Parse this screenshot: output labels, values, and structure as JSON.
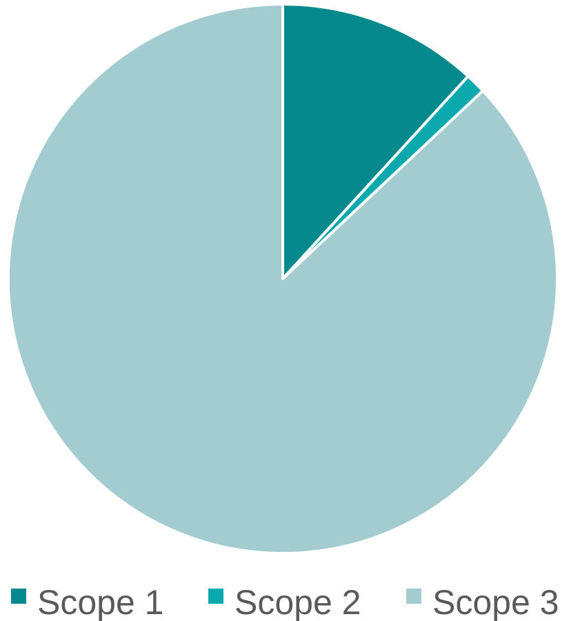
{
  "chart_data": {
    "type": "pie",
    "title": "",
    "start_angle_deg": 90,
    "direction": "clockwise",
    "legend_position": "bottom",
    "slices": [
      {
        "label": "Scope 1",
        "value": 11.8,
        "color": "#05898D"
      },
      {
        "label": "Scope 2",
        "value": 1.2,
        "color": "#0BA8AE"
      },
      {
        "label": "Scope 3",
        "value": 87.0,
        "color": "#A2CCCF"
      }
    ]
  }
}
